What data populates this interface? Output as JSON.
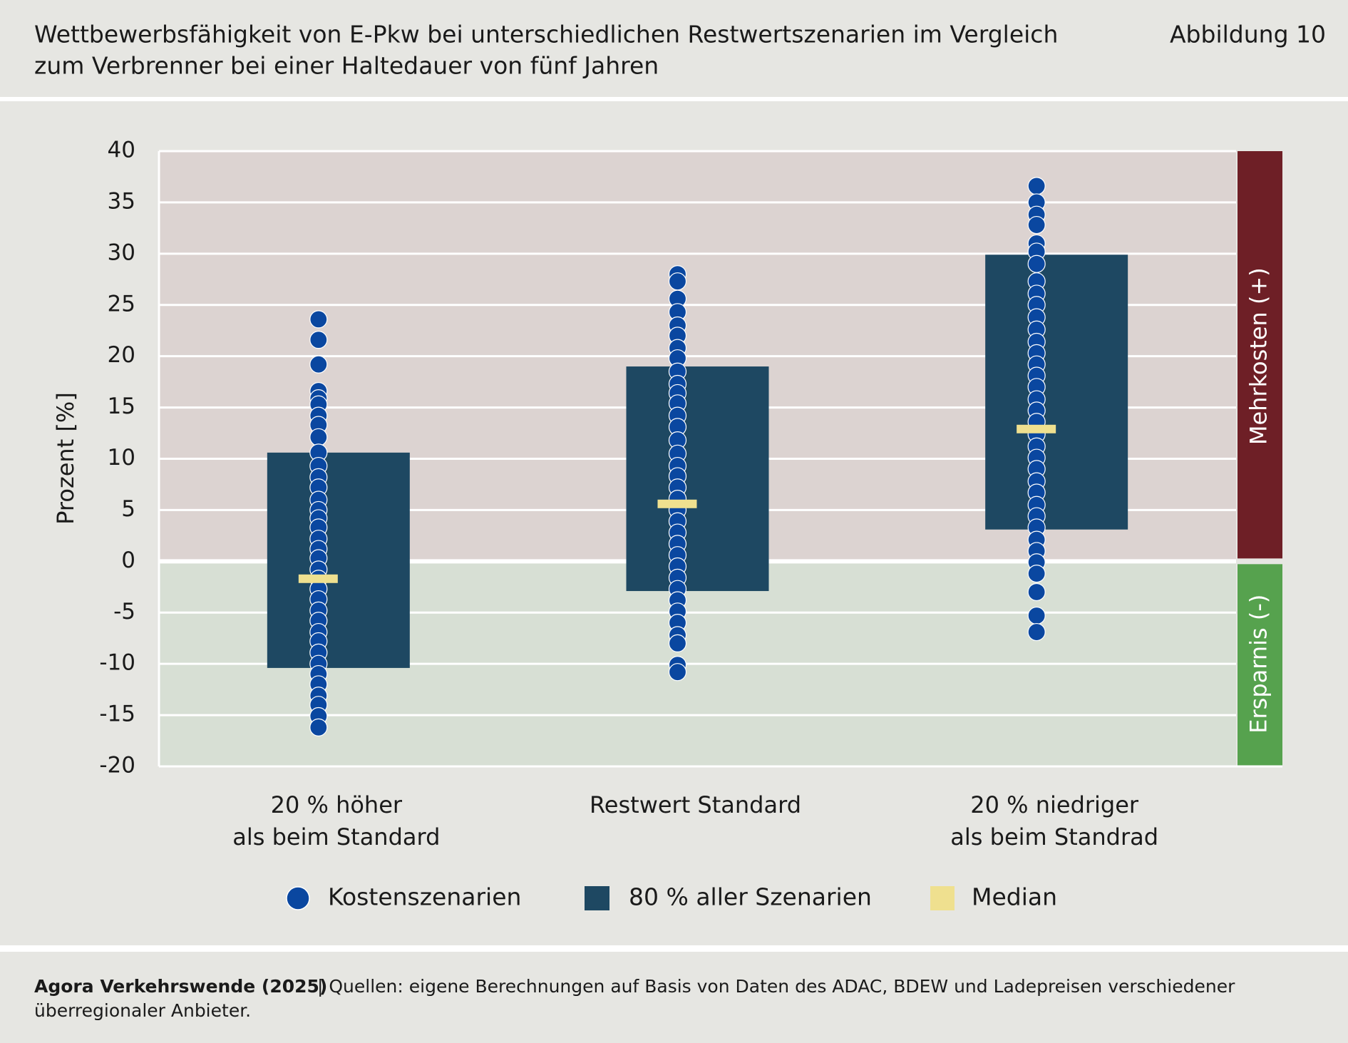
{
  "chart_data": {
    "type": "strip",
    "title": [
      "Wettbewerbsfähigkeit von E-Pkw bei unterschiedlichen Restwertszenarien im Vergleich",
      "zum Verbrenner bei einer Haltedauer von fünf Jahren"
    ],
    "figure_label": "Abbildung 10",
    "y_label": "Prozent [%]",
    "categories": [
      [
        "20 % höher",
        "als beim Standard"
      ],
      [
        "Restwert Standard"
      ],
      [
        "20 % niedriger",
        "als beim Standrad"
      ]
    ],
    "ylim": [
      -20,
      40
    ],
    "yticks": [
      -20,
      -15,
      -10,
      -5,
      0,
      5,
      10,
      15,
      20,
      25,
      30,
      35,
      40
    ],
    "grid": true,
    "zones": [
      {
        "label": "Mehrkosten (+)",
        "range": [
          0,
          40
        ],
        "color": "#6e1f26",
        "background": "#dcd3d1"
      },
      {
        "label": "Ersparnis (-)",
        "range": [
          -20,
          0
        ],
        "color": "#56a24e",
        "background": "#d7dfd4"
      }
    ],
    "series": [
      {
        "name": "Kostenszenarien",
        "color": "#0a47a0",
        "values": [
          [
            23.6,
            21.6,
            19.2,
            16.6,
            15.9,
            15.3,
            14.2,
            13.3,
            12.1,
            10.6,
            9.3,
            8.2,
            7.2,
            6.0,
            5.0,
            4.2,
            3.3,
            2.2,
            1.2,
            0.3,
            -0.8,
            -1.7,
            -2.7,
            -3.7,
            -4.8,
            -5.8,
            -6.9,
            -7.8,
            -8.9,
            -10.0,
            -11.0,
            -12.0,
            -13.1,
            -14.0,
            -15.1,
            -16.2
          ],
          [
            28.0,
            27.3,
            25.6,
            24.3,
            23.0,
            22.0,
            20.8,
            19.8,
            18.5,
            17.3,
            16.4,
            15.4,
            14.2,
            13.1,
            11.8,
            10.5,
            9.3,
            8.3,
            7.2,
            6.1,
            5.0,
            3.9,
            2.8,
            1.7,
            0.6,
            -0.5,
            -1.6,
            -2.7,
            -3.8,
            -4.9,
            -6.0,
            -7.2,
            -8.0,
            -10.1,
            -10.8
          ],
          [
            36.6,
            35.0,
            33.8,
            32.8,
            31.0,
            30.2,
            29.0,
            27.3,
            26.1,
            25.0,
            23.8,
            22.6,
            21.4,
            20.3,
            19.2,
            18.1,
            17.0,
            15.8,
            14.7,
            13.6,
            12.4,
            11.2,
            10.1,
            9.0,
            7.8,
            6.7,
            5.5,
            4.4,
            3.3,
            2.1,
            1.0,
            -0.1,
            -1.2,
            -3.0,
            -5.3,
            -6.9
          ]
        ]
      },
      {
        "name": "80 % aller Szenarien",
        "color": "#1e4862",
        "values": [
          [
            -10.4,
            10.6
          ],
          [
            -2.9,
            19.0
          ],
          [
            3.1,
            29.9
          ]
        ]
      },
      {
        "name": "Median",
        "color": "#efe08f",
        "values": [
          -1.7,
          5.6,
          12.9
        ]
      }
    ]
  },
  "footer": {
    "source_bold": "Agora Verkehrswende (2025)",
    "source_text": [
      "| Quellen: eigene Berechnungen auf Basis von Daten des ADAC, BDEW und Ladepreisen verschiedener",
      "überregionaler Anbieter."
    ]
  }
}
